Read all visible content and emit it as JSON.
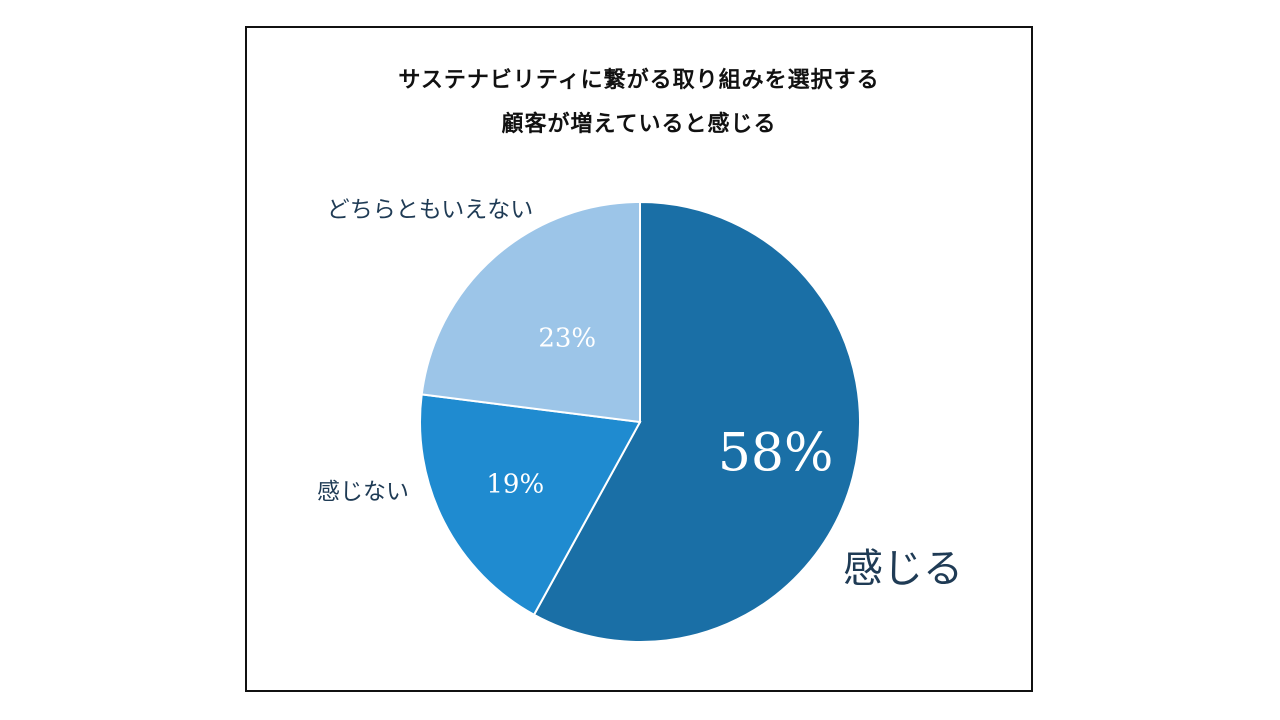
{
  "chart_data": {
    "type": "pie",
    "title_lines": [
      "サステナビリティに繋がる取り組みを選択する",
      "顧客が増えていると感じる"
    ],
    "slices": [
      {
        "name": "感じる",
        "value": 58,
        "label": "58%",
        "color": "#1a6fa6"
      },
      {
        "name": "感じない",
        "value": 19,
        "label": "19%",
        "color": "#1f8bd0"
      },
      {
        "name": "どちらともいえない",
        "value": 23,
        "label": "23%",
        "color": "#9cc5e8"
      }
    ],
    "start_angle_deg": 0,
    "direction": "clockwise",
    "slice_border_color": "#ffffff"
  }
}
